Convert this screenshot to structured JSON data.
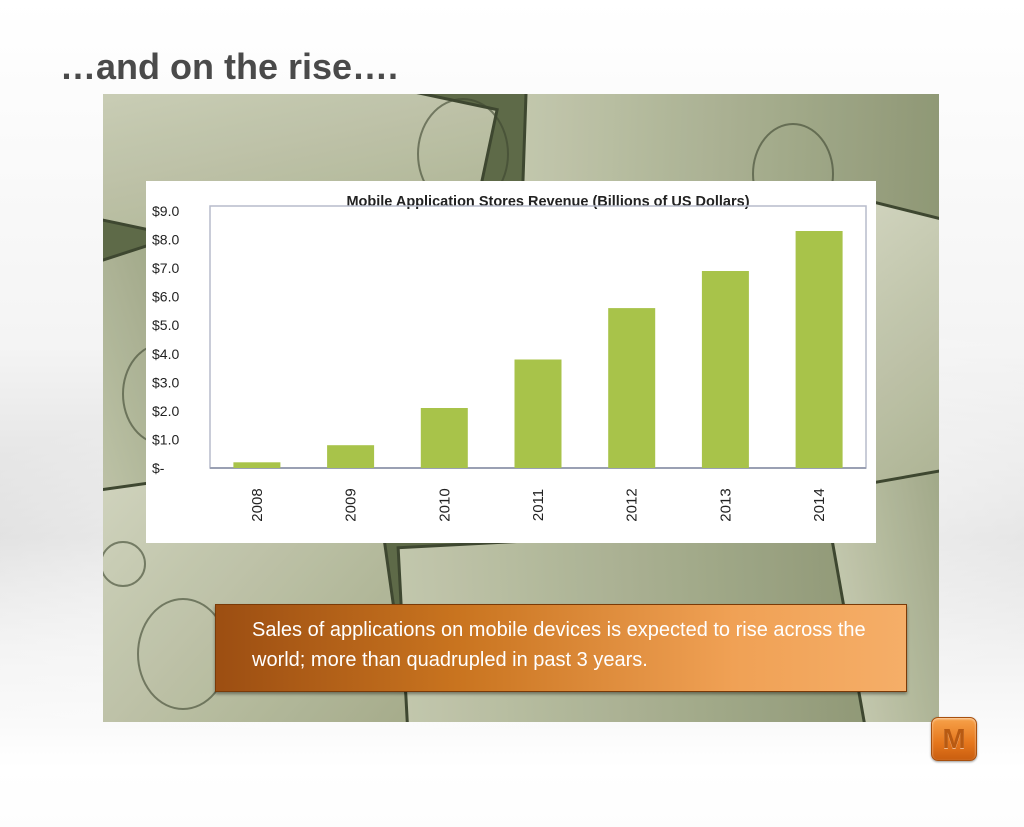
{
  "slide": {
    "title": "…and on the rise….",
    "caption": "Sales of applications on mobile devices is expected to rise across the world; more than quadrupled in past 3 years.",
    "logo_letter": "M"
  },
  "colors": {
    "bar": "#a8c34a",
    "caption_start": "#9c4e12",
    "caption_end": "#f5ae68",
    "title": "#4a4a4a"
  },
  "chart_data": {
    "type": "bar",
    "title": "Mobile Application Stores Revenue (Billions of US Dollars)",
    "categories": [
      "2008",
      "2009",
      "2010",
      "2011",
      "2012",
      "2013",
      "2014"
    ],
    "values": [
      0.2,
      0.8,
      2.1,
      3.8,
      5.6,
      6.9,
      8.3
    ],
    "ytick_labels": [
      "$-",
      "$1.0",
      "$2.0",
      "$3.0",
      "$4.0",
      "$5.0",
      "$6.0",
      "$7.0",
      "$8.0",
      "$9.0"
    ],
    "ylim": [
      0,
      9
    ],
    "xlabel": "",
    "ylabel": "",
    "grid": false,
    "legend": "none"
  }
}
